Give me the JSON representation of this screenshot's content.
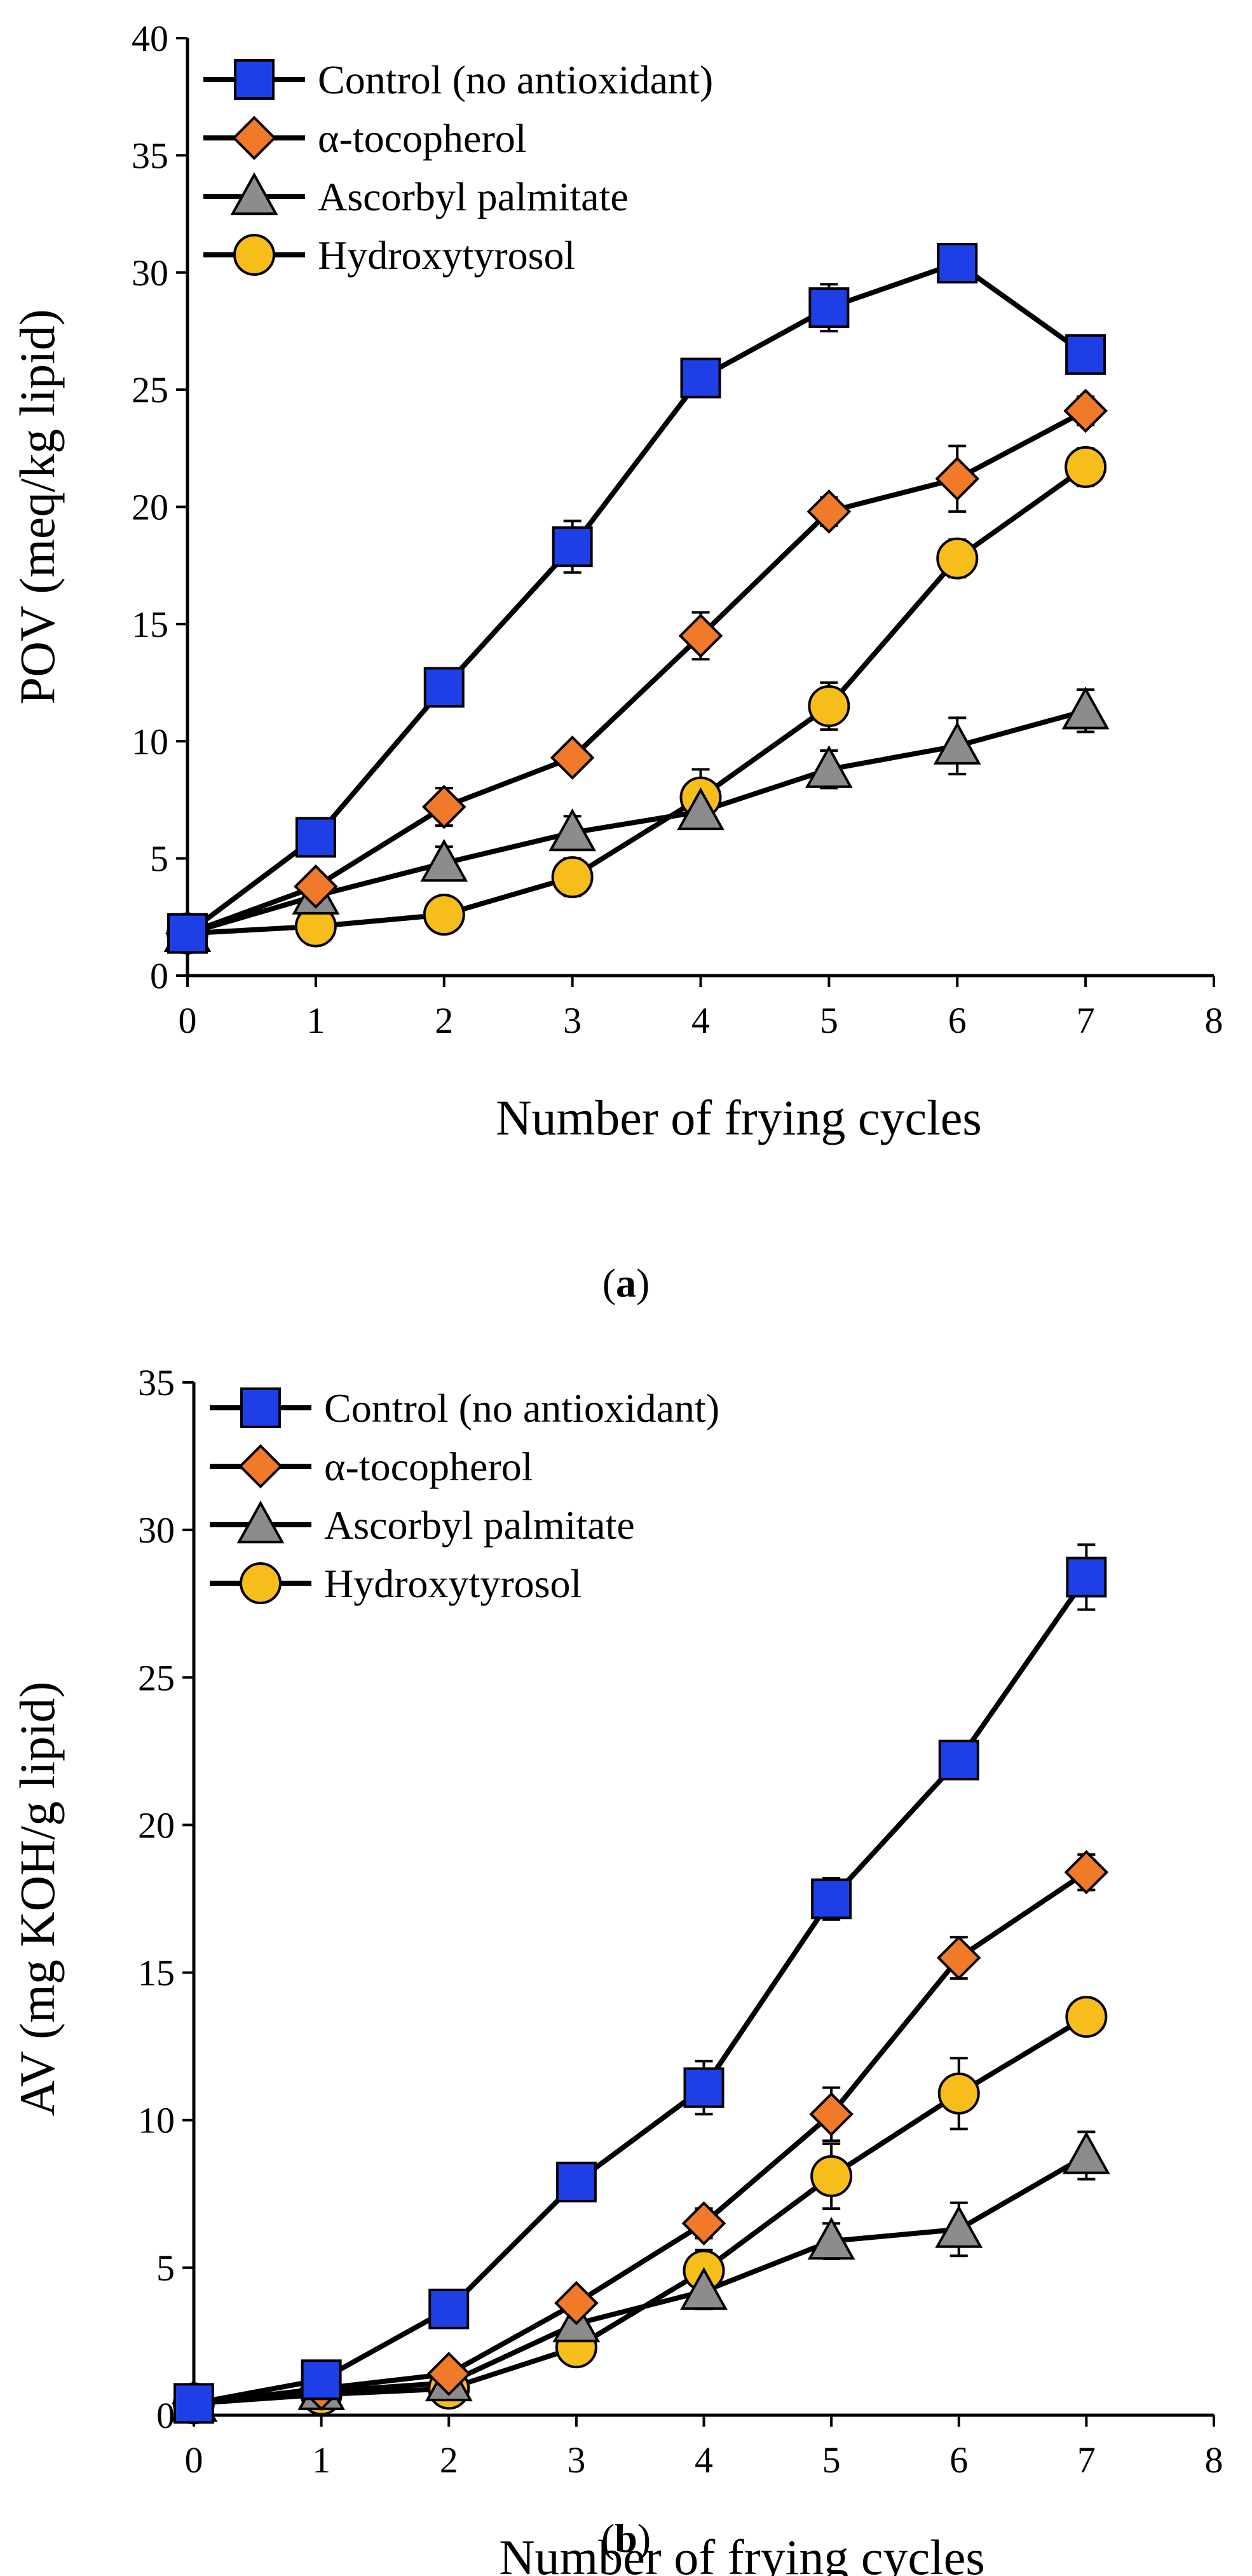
{
  "charts": [
    {
      "caption": {
        "open": "(",
        "letter": "a",
        "close": ")"
      }
    },
    {
      "caption": {
        "open": "(",
        "letter": "b",
        "close": ")"
      }
    }
  ],
  "legend": [
    {
      "name": "Control (no antioxidant)",
      "color": "#1f3fe6",
      "marker": "square"
    },
    {
      "name": "α-tocopherol",
      "color": "#f07a2a",
      "marker": "diamond"
    },
    {
      "name": "Ascorbyl palmitate",
      "color": "#8c8c8c",
      "marker": "triangle"
    },
    {
      "name": "Hydroxytyrosol",
      "color": "#f7bd1a",
      "marker": "circle"
    }
  ],
  "chart_data": [
    {
      "type": "line",
      "title": "",
      "xlabel": "Number of frying cycles",
      "ylabel": "POV (meq/kg lipid)",
      "xlim": [
        0,
        8
      ],
      "ylim": [
        0,
        40
      ],
      "xticks": [
        0,
        1,
        2,
        3,
        4,
        5,
        6,
        7,
        8
      ],
      "yticks": [
        0,
        5,
        10,
        15,
        20,
        25,
        30,
        35,
        40
      ],
      "x": [
        0,
        1,
        2,
        3,
        4,
        5,
        6,
        7
      ],
      "series": [
        {
          "name": "Control (no antioxidant)",
          "values": [
            1.8,
            5.9,
            12.3,
            18.3,
            25.5,
            28.5,
            30.4,
            26.5
          ],
          "errors": [
            0.3,
            0.4,
            0.6,
            1.1,
            0.6,
            1.0,
            0.6,
            0.8
          ]
        },
        {
          "name": "α-tocopherol",
          "values": [
            1.8,
            3.8,
            7.2,
            9.3,
            14.5,
            19.8,
            21.2,
            24.1
          ],
          "errors": [
            0.3,
            0.4,
            0.8,
            0.4,
            1.0,
            0.6,
            1.4,
            0.6
          ]
        },
        {
          "name": "Ascorbyl palmitate",
          "values": [
            1.8,
            3.4,
            4.8,
            6.1,
            7.0,
            8.8,
            9.8,
            11.3
          ],
          "errors": [
            0.3,
            0.5,
            0.7,
            0.7,
            0.7,
            0.8,
            1.2,
            0.9
          ]
        },
        {
          "name": "Hydroxytyrosol",
          "values": [
            1.8,
            2.1,
            2.6,
            4.2,
            7.6,
            11.5,
            17.8,
            21.7
          ],
          "errors": [
            0.3,
            0.3,
            0.4,
            0.8,
            1.2,
            1.0,
            0.8,
            0.8
          ]
        }
      ],
      "legend_position": "top-left"
    },
    {
      "type": "line",
      "title": "",
      "xlabel": "Number of frying cycles",
      "ylabel": "AV (mg KOH/g lipid)",
      "xlim": [
        0,
        8
      ],
      "ylim": [
        0,
        35
      ],
      "xticks": [
        0,
        1,
        2,
        3,
        4,
        5,
        6,
        7,
        8
      ],
      "yticks": [
        0,
        5,
        10,
        15,
        20,
        25,
        30,
        35
      ],
      "x": [
        0,
        1,
        2,
        3,
        4,
        5,
        6,
        7
      ],
      "series": [
        {
          "name": "Control (no antioxidant)",
          "values": [
            0.4,
            1.2,
            3.6,
            7.9,
            11.1,
            17.5,
            22.2,
            28.4
          ],
          "errors": [
            0.2,
            0.3,
            0.3,
            0.4,
            0.9,
            0.7,
            0.6,
            1.1
          ]
        },
        {
          "name": "α-tocopherol",
          "values": [
            0.4,
            0.9,
            1.4,
            3.8,
            6.5,
            10.2,
            15.5,
            18.4
          ],
          "errors": [
            0.2,
            0.3,
            0.3,
            0.4,
            0.5,
            0.9,
            0.7,
            0.6
          ]
        },
        {
          "name": "Ascorbyl palmitate",
          "values": [
            0.4,
            0.8,
            1.1,
            3.1,
            4.2,
            5.9,
            6.3,
            8.8
          ],
          "errors": [
            0.2,
            0.3,
            0.3,
            0.5,
            0.6,
            0.6,
            0.9,
            0.8
          ]
        },
        {
          "name": "Hydroxytyrosol",
          "values": [
            0.4,
            0.7,
            0.9,
            2.3,
            4.9,
            8.1,
            10.9,
            13.5
          ],
          "errors": [
            0.2,
            0.3,
            0.3,
            0.4,
            0.7,
            1.1,
            1.2,
            0.6
          ]
        }
      ],
      "legend_position": "top-left"
    }
  ]
}
